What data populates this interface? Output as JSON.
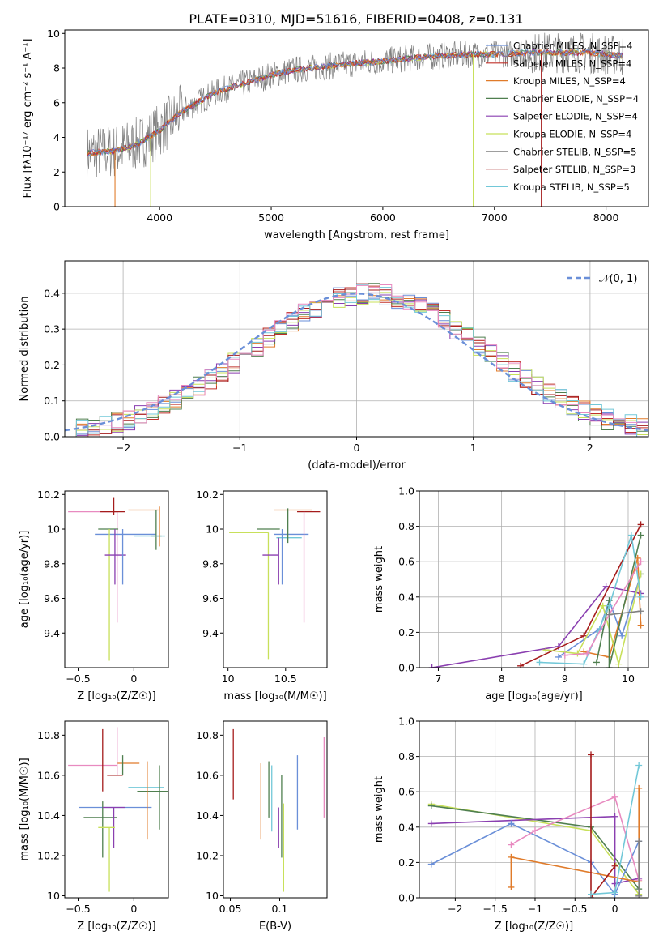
{
  "figure_title": "PLATE=0310, MJD=51616, FIBERID=0408, z=0.131",
  "colors": {
    "chabrier_miles": "#6a8fd8",
    "salpeter_miles": "#c0302a",
    "kroupa_miles": "#e07b2a",
    "chabrier_elodie": "#4f7f4f",
    "salpeter_elodie": "#8a3fb0",
    "kroupa_elodie": "#c8e05a",
    "chabrier_stelib": "#7f7f7f",
    "salpeter_stelib": "#a51c1c",
    "kroupa_stelib": "#72c8d8",
    "pink": "#e88ac0",
    "grid": "#b0b0b0"
  },
  "chart_data": [
    {
      "id": "spectrum",
      "type": "line",
      "xlabel": "wavelength [Angstrom, rest frame]",
      "ylabel": "Flux [fλ10⁻¹⁷ erg cm⁻² s⁻¹ A⁻¹]",
      "xlim": [
        3150,
        8380
      ],
      "ylim": [
        0,
        10.2
      ],
      "xticks": [
        4000,
        5000,
        6000,
        7000,
        8000
      ],
      "yticks": [
        0,
        2,
        4,
        6,
        8,
        10
      ],
      "grid": false,
      "legend": "right",
      "legend_entries": [
        {
          "label": "Chabrier MILES, N_SSP=4",
          "color": "chabrier_miles"
        },
        {
          "label": "Salpeter MILES, N_SSP=4",
          "color": "salpeter_miles"
        },
        {
          "label": "Kroupa MILES, N_SSP=4",
          "color": "kroupa_miles"
        },
        {
          "label": "Chabrier ELODIE, N_SSP=4",
          "color": "chabrier_elodie"
        },
        {
          "label": "Salpeter ELODIE, N_SSP=4",
          "color": "salpeter_elodie"
        },
        {
          "label": "Kroupa ELODIE, N_SSP=4",
          "color": "kroupa_elodie"
        },
        {
          "label": "Chabrier STELIB, N_SSP=5",
          "color": "chabrier_stelib"
        },
        {
          "label": "Salpeter STELIB, N_SSP=3",
          "color": "salpeter_stelib"
        },
        {
          "label": "Kroupa STELIB, N_SSP=5",
          "color": "kroupa_stelib"
        }
      ],
      "continuum": {
        "x": [
          3350,
          3600,
          3800,
          4000,
          4200,
          4500,
          4800,
          5000,
          5200,
          5500,
          5800,
          6000,
          6300,
          6500,
          6800,
          7000,
          7300,
          7500,
          7800,
          8000,
          8150
        ],
        "y": [
          3.1,
          3.2,
          3.6,
          4.4,
          5.5,
          6.6,
          7.2,
          7.6,
          7.9,
          8.1,
          8.3,
          8.4,
          8.6,
          8.7,
          8.8,
          8.8,
          8.9,
          8.9,
          8.9,
          8.8,
          8.7
        ]
      }
    },
    {
      "id": "residuals",
      "type": "bar",
      "xlabel": "(data-model)/error",
      "ylabel": "Normed distribution",
      "xlim": [
        -2.5,
        2.5
      ],
      "ylim": [
        0,
        0.49
      ],
      "xticks": [
        -2,
        -1,
        0,
        1,
        2
      ],
      "yticks": [
        0.0,
        0.1,
        0.2,
        0.3,
        0.4
      ],
      "grid": true,
      "legend": "top-right",
      "legend_label": "𝒩(0, 1)",
      "bin_width": 0.1
    },
    {
      "id": "age_vs_Z",
      "type": "scatter",
      "xlabel": "Z [log₁₀(Z/Z☉)]",
      "ylabel": "age  [log₁₀(age/yr)]",
      "xlim": [
        -0.62,
        0.31
      ],
      "ylim": [
        9.2,
        10.22
      ],
      "xticks": [
        -0.5,
        0.0
      ],
      "yticks": [
        9.4,
        9.6,
        9.8,
        10.0,
        10.2
      ],
      "points": [
        {
          "color": "pink",
          "x": -0.15,
          "xerr": [
            0.44,
            0.0
          ],
          "y": 10.1,
          "yerr": [
            0.64,
            0.0
          ]
        },
        {
          "color": "salpeter_stelib",
          "x": -0.18,
          "xerr": [
            0.12,
            0.1
          ],
          "y": 10.1,
          "yerr": [
            0.02,
            0.08
          ]
        },
        {
          "color": "kroupa_miles",
          "x": 0.07,
          "xerr": [
            0.12,
            0.15
          ],
          "y": 10.11,
          "yerr": [
            0.0,
            0.0
          ]
        },
        {
          "color": "chabrier_miles",
          "x": -0.06,
          "xerr": [
            0.29,
            0.26
          ],
          "y": 9.97,
          "yerr": [
            0.0,
            0.0
          ]
        },
        {
          "color": "chabrier_elodie",
          "x": -0.18,
          "xerr": [
            0.14,
            0.04
          ],
          "y": 10.0,
          "yerr": [
            0.0,
            0.0
          ]
        },
        {
          "color": "chabrier_elodie",
          "x": 0.2,
          "xerr": [
            0.05,
            0.05
          ],
          "y": 9.96,
          "yerr": [
            0.08,
            0.15
          ]
        },
        {
          "color": "kroupa_elodie",
          "x": -0.22,
          "xerr": [
            0.0,
            0.0
          ],
          "y": 10.0,
          "yerr": [
            0.76,
            0.0
          ]
        },
        {
          "color": "salpeter_elodie",
          "x": -0.17,
          "xerr": [
            0.09,
            0.1
          ],
          "y": 9.85,
          "yerr": [
            0.17,
            0.15
          ]
        },
        {
          "color": "chabrier_miles",
          "x": -0.1,
          "xerr": [
            0.0,
            0.0
          ],
          "y": 9.9,
          "yerr": [
            0.22,
            0.1
          ]
        },
        {
          "color": "kroupa_stelib",
          "x": 0.05,
          "xerr": [
            0.05,
            0.23
          ],
          "y": 9.96,
          "yerr": [
            0.0,
            0.0
          ]
        },
        {
          "color": "kroupa_miles",
          "x": 0.23,
          "xerr": [
            0.0,
            0.0
          ],
          "y": 10.0,
          "yerr": [
            0.1,
            0.13
          ]
        }
      ]
    },
    {
      "id": "age_vs_mass",
      "type": "scatter",
      "xlabel": "mass [log₁₀(M/M☉)]",
      "ylabel": "",
      "xlim": [
        9.96,
        10.86
      ],
      "ylim": [
        9.2,
        10.22
      ],
      "xticks": [
        10.0,
        10.5
      ],
      "yticks": [
        9.4,
        9.6,
        9.8,
        10.0,
        10.2
      ],
      "points": [
        {
          "color": "kroupa_miles",
          "x": 10.6,
          "xerr": [
            0.2,
            0.13
          ],
          "y": 10.11,
          "yerr": [
            0.0,
            0.0
          ]
        },
        {
          "color": "salpeter_stelib",
          "x": 10.65,
          "xerr": [
            0.05,
            0.15
          ],
          "y": 10.1,
          "yerr": [
            0.0,
            0.0
          ]
        },
        {
          "color": "chabrier_elodie",
          "x": 10.35,
          "xerr": [
            0.1,
            0.1
          ],
          "y": 10.0,
          "yerr": [
            0.0,
            0.0
          ]
        },
        {
          "color": "kroupa_elodie",
          "x": 10.35,
          "xerr": [
            0.34,
            0.0
          ],
          "y": 9.98,
          "yerr": [
            0.73,
            0.0
          ]
        },
        {
          "color": "chabrier_miles",
          "x": 10.55,
          "xerr": [
            0.15,
            0.15
          ],
          "y": 9.97,
          "yerr": [
            0.0,
            0.0
          ]
        },
        {
          "color": "kroupa_stelib",
          "x": 10.56,
          "xerr": [
            0.14,
            0.08
          ],
          "y": 9.95,
          "yerr": [
            0.0,
            0.0
          ]
        },
        {
          "color": "salpeter_elodie",
          "x": 10.44,
          "xerr": [
            0.14,
            0.0
          ],
          "y": 9.85,
          "yerr": [
            0.17,
            0.1
          ]
        },
        {
          "color": "pink",
          "x": 10.66,
          "xerr": [
            0.0,
            0.0
          ],
          "y": 10.1,
          "yerr": [
            0.64,
            0.0
          ]
        },
        {
          "color": "chabrier_elodie",
          "x": 10.52,
          "xerr": [
            0.0,
            0.0
          ],
          "y": 10.0,
          "yerr": [
            0.08,
            0.12
          ]
        },
        {
          "color": "chabrier_miles",
          "x": 10.47,
          "xerr": [
            0.0,
            0.0
          ],
          "y": 9.9,
          "yerr": [
            0.22,
            0.1
          ]
        }
      ]
    },
    {
      "id": "weight_vs_age",
      "type": "line",
      "xlabel": "age  [log₁₀(age/yr)]",
      "ylabel": "mass weight",
      "xlim": [
        6.7,
        10.32
      ],
      "ylim": [
        0,
        1.0
      ],
      "xticks": [
        7,
        8,
        9,
        10
      ],
      "yticks": [
        0.0,
        0.2,
        0.4,
        0.6,
        0.8,
        1.0
      ],
      "grid": true,
      "series": [
        {
          "color": "salpeter_elodie",
          "x": [
            6.9,
            8.9,
            9.65,
            10.2
          ],
          "y": [
            0.0,
            0.12,
            0.46,
            0.42
          ]
        },
        {
          "color": "salpeter_stelib",
          "x": [
            8.3,
            9.3,
            10.2
          ],
          "y": [
            0.01,
            0.18,
            0.81
          ]
        },
        {
          "color": "chabrier_miles",
          "x": [
            8.9,
            9.55,
            9.7,
            9.9,
            10.2
          ],
          "y": [
            0.06,
            0.22,
            0.38,
            0.18,
            0.53
          ]
        },
        {
          "color": "kroupa_miles",
          "x": [
            9.3,
            9.7,
            10.15,
            10.2
          ],
          "y": [
            0.09,
            0.06,
            0.62,
            0.24
          ]
        },
        {
          "color": "kroupa_elodie",
          "x": [
            8.7,
            9.2,
            9.6,
            9.85,
            10.2
          ],
          "y": [
            0.1,
            0.08,
            0.35,
            0.02,
            0.53
          ]
        },
        {
          "color": "chabrier_elodie",
          "x": [
            9.5,
            9.7,
            9.7,
            10.2
          ],
          "y": [
            0.03,
            0.38,
            0.0,
            0.75
          ]
        },
        {
          "color": "kroupa_stelib",
          "x": [
            8.6,
            9.3,
            9.7,
            10.05,
            10.2
          ],
          "y": [
            0.03,
            0.02,
            0.35,
            0.75,
            0.4
          ]
        },
        {
          "color": "pink",
          "x": [
            9.0,
            9.35,
            9.7,
            10.2
          ],
          "y": [
            0.07,
            0.08,
            0.3,
            0.6
          ]
        },
        {
          "color": "chabrier_stelib",
          "x": [
            9.7,
            10.2
          ],
          "y": [
            0.3,
            0.32
          ]
        }
      ]
    },
    {
      "id": "mass_vs_Z",
      "type": "scatter",
      "xlabel": "Z [log₁₀(Z/Z☉)]",
      "ylabel": "mass [log₁₀(M/M☉)]",
      "xlim": [
        -0.62,
        0.31
      ],
      "ylim": [
        9.99,
        10.87
      ],
      "xticks": [
        -0.5,
        0.0
      ],
      "yticks": [
        10.0,
        10.2,
        10.4,
        10.6,
        10.8
      ],
      "points": [
        {
          "color": "pink",
          "x": -0.15,
          "xerr": [
            0.44,
            0.0
          ],
          "y": 10.65,
          "yerr": [
            0.0,
            0.0
          ]
        },
        {
          "color": "kroupa_miles",
          "x": 0.05,
          "xerr": [
            0.2,
            0.0
          ],
          "y": 10.66,
          "yerr": [
            0.0,
            0.0
          ]
        },
        {
          "color": "salpeter_stelib",
          "x": -0.1,
          "xerr": [
            0.14,
            0.0
          ],
          "y": 10.6,
          "yerr": [
            0.0,
            0.0
          ]
        },
        {
          "color": "chabrier_miles",
          "x": -0.1,
          "xerr": [
            0.39,
            0.26
          ],
          "y": 10.44,
          "yerr": [
            0.0,
            0.0
          ]
        },
        {
          "color": "kroupa_stelib",
          "x": 0.0,
          "xerr": [
            0.05,
            0.27
          ],
          "y": 10.54,
          "yerr": [
            0.0,
            0.0
          ]
        },
        {
          "color": "chabrier_elodie",
          "x": 0.23,
          "xerr": [
            0.2,
            0.08
          ],
          "y": 10.52,
          "yerr": [
            0.19,
            0.13
          ]
        },
        {
          "color": "chabrier_elodie",
          "x": -0.28,
          "xerr": [
            0.17,
            0.13
          ],
          "y": 10.39,
          "yerr": [
            0.2,
            0.08
          ]
        },
        {
          "color": "salpeter_elodie",
          "x": -0.18,
          "xerr": [
            0.1,
            0.1
          ],
          "y": 10.44,
          "yerr": [
            0.2,
            0.0
          ]
        },
        {
          "color": "kroupa_elodie",
          "x": -0.22,
          "xerr": [
            0.1,
            0.05
          ],
          "y": 10.34,
          "yerr": [
            0.32,
            0.0
          ]
        },
        {
          "color": "salpeter_stelib",
          "x": -0.28,
          "xerr": [
            0.0,
            0.0
          ],
          "y": 10.6,
          "yerr": [
            0.08,
            0.23
          ]
        },
        {
          "color": "pink",
          "x": -0.15,
          "xerr": [
            0.0,
            0.0
          ],
          "y": 10.6,
          "yerr": [
            0.0,
            0.24
          ]
        },
        {
          "color": "chabrier_elodie",
          "x": -0.1,
          "xerr": [
            0.0,
            0.0
          ],
          "y": 10.6,
          "yerr": [
            0.0,
            0.1
          ]
        },
        {
          "color": "kroupa_miles",
          "x": 0.12,
          "xerr": [
            0.0,
            0.0
          ],
          "y": 10.5,
          "yerr": [
            0.22,
            0.17
          ]
        }
      ]
    },
    {
      "id": "mass_vs_ebv",
      "type": "scatter",
      "xlabel": "E(B-V)",
      "ylabel": "",
      "xlim": [
        0.043,
        0.148
      ],
      "ylim": [
        9.99,
        10.87
      ],
      "xticks": [
        0.05,
        0.1
      ],
      "yticks": [
        10.0,
        10.2,
        10.4,
        10.6,
        10.8
      ],
      "vlines": [
        {
          "color": "salpeter_stelib",
          "x": 0.053,
          "y": [
            10.48,
            10.83
          ]
        },
        {
          "color": "kroupa_miles",
          "x": 0.081,
          "y": [
            10.28,
            10.66
          ]
        },
        {
          "color": "chabrier_elodie",
          "x": 0.089,
          "y": [
            10.39,
            10.67
          ]
        },
        {
          "color": "kroupa_stelib",
          "x": 0.092,
          "y": [
            10.32,
            10.65
          ]
        },
        {
          "color": "salpeter_elodie",
          "x": 0.099,
          "y": [
            10.24,
            10.44
          ]
        },
        {
          "color": "chabrier_elodie",
          "x": 0.102,
          "y": [
            10.19,
            10.6
          ]
        },
        {
          "color": "kroupa_elodie",
          "x": 0.104,
          "y": [
            10.02,
            10.46
          ]
        },
        {
          "color": "chabrier_miles",
          "x": 0.118,
          "y": [
            10.33,
            10.7
          ]
        },
        {
          "color": "pink",
          "x": 0.145,
          "y": [
            10.39,
            10.79
          ]
        }
      ]
    },
    {
      "id": "weight_vs_Z",
      "type": "line",
      "xlabel": "Z [log₁₀(Z/Z☉)]",
      "ylabel": "mass weight",
      "xlim": [
        -2.45,
        0.42
      ],
      "ylim": [
        0,
        1.0
      ],
      "xticks": [
        -2.0,
        -1.5,
        -1.0,
        -0.5,
        0.0
      ],
      "yticks": [
        0.0,
        0.2,
        0.4,
        0.6,
        0.8,
        1.0
      ],
      "grid": true,
      "series": [
        {
          "color": "kroupa_elodie",
          "x": [
            -2.3,
            -0.3,
            0.3
          ],
          "y": [
            0.53,
            0.38,
            0.02
          ]
        },
        {
          "color": "chabrier_elodie",
          "x": [
            -2.3,
            -0.3,
            0.3
          ],
          "y": [
            0.52,
            0.4,
            0.05
          ]
        },
        {
          "color": "salpeter_elodie",
          "x": [
            -2.3,
            0.0,
            0.0,
            0.3
          ],
          "y": [
            0.42,
            0.46,
            0.08,
            0.11
          ]
        },
        {
          "color": "chabrier_miles",
          "x": [
            -2.3,
            -1.3,
            -0.3,
            0.0,
            0.3
          ],
          "y": [
            0.19,
            0.42,
            0.2,
            0.02,
            0.32
          ]
        },
        {
          "color": "kroupa_miles",
          "x": [
            -1.3,
            -1.3,
            0.3,
            0.3
          ],
          "y": [
            0.06,
            0.23,
            0.09,
            0.62
          ]
        },
        {
          "color": "pink",
          "x": [
            -1.3,
            -1.0,
            0.0,
            0.3
          ],
          "y": [
            0.3,
            0.38,
            0.57,
            0.1
          ]
        },
        {
          "color": "salpeter_stelib",
          "x": [
            -0.3,
            -0.3,
            0.0
          ],
          "y": [
            0.81,
            0.0,
            0.18
          ]
        },
        {
          "color": "kroupa_stelib",
          "x": [
            -0.3,
            0.0,
            0.3
          ],
          "y": [
            0.02,
            0.03,
            0.75
          ]
        },
        {
          "color": "chabrier_stelib",
          "x": [
            0.3,
            0.3
          ],
          "y": [
            0.01,
            0.32
          ]
        }
      ]
    }
  ]
}
